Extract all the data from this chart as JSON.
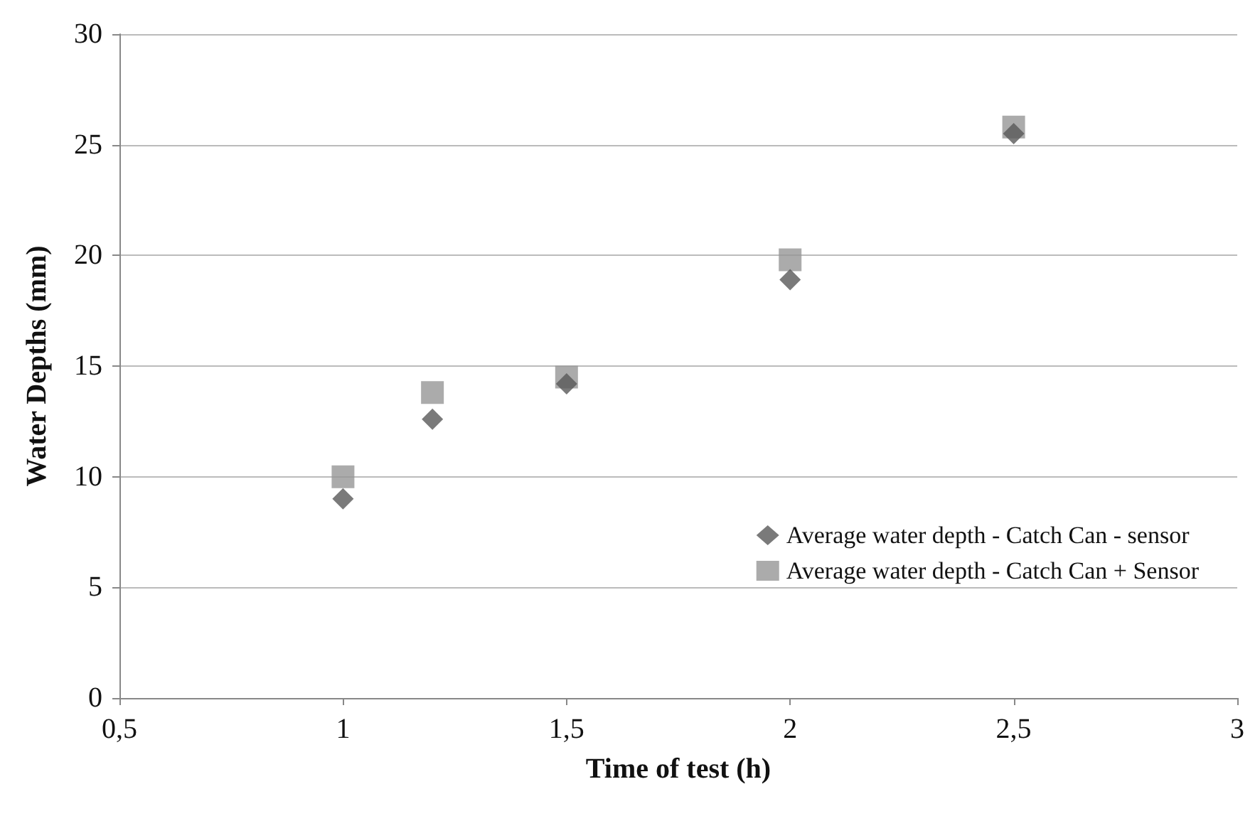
{
  "chart_data": {
    "type": "scatter",
    "xlabel": "Time of test (h)",
    "ylabel": "Water Depths (mm)",
    "x": [
      1,
      1.2,
      1.5,
      2,
      2.5
    ],
    "series": [
      {
        "name": "Average water depth - Catch Can - sensor",
        "color": "#595959",
        "marker": "diamond",
        "values": [
          9.0,
          12.6,
          14.2,
          18.9,
          25.5
        ]
      },
      {
        "name": "Average water depth - Catch Can + Sensor",
        "color": "#969696",
        "marker": "square",
        "values": [
          10.0,
          13.8,
          14.5,
          19.8,
          25.8
        ]
      }
    ],
    "xlim": [
      0.5,
      3
    ],
    "xticks": [
      {
        "value": 0.5,
        "label": "0,5"
      },
      1,
      {
        "value": 1.5,
        "label": "1,5"
      },
      2,
      {
        "value": 2.5,
        "label": "2,5"
      },
      3
    ],
    "ylim": [
      0,
      30
    ],
    "yticks": [
      0,
      5,
      10,
      15,
      20,
      25,
      30
    ],
    "grid": "y",
    "legend": "right"
  }
}
